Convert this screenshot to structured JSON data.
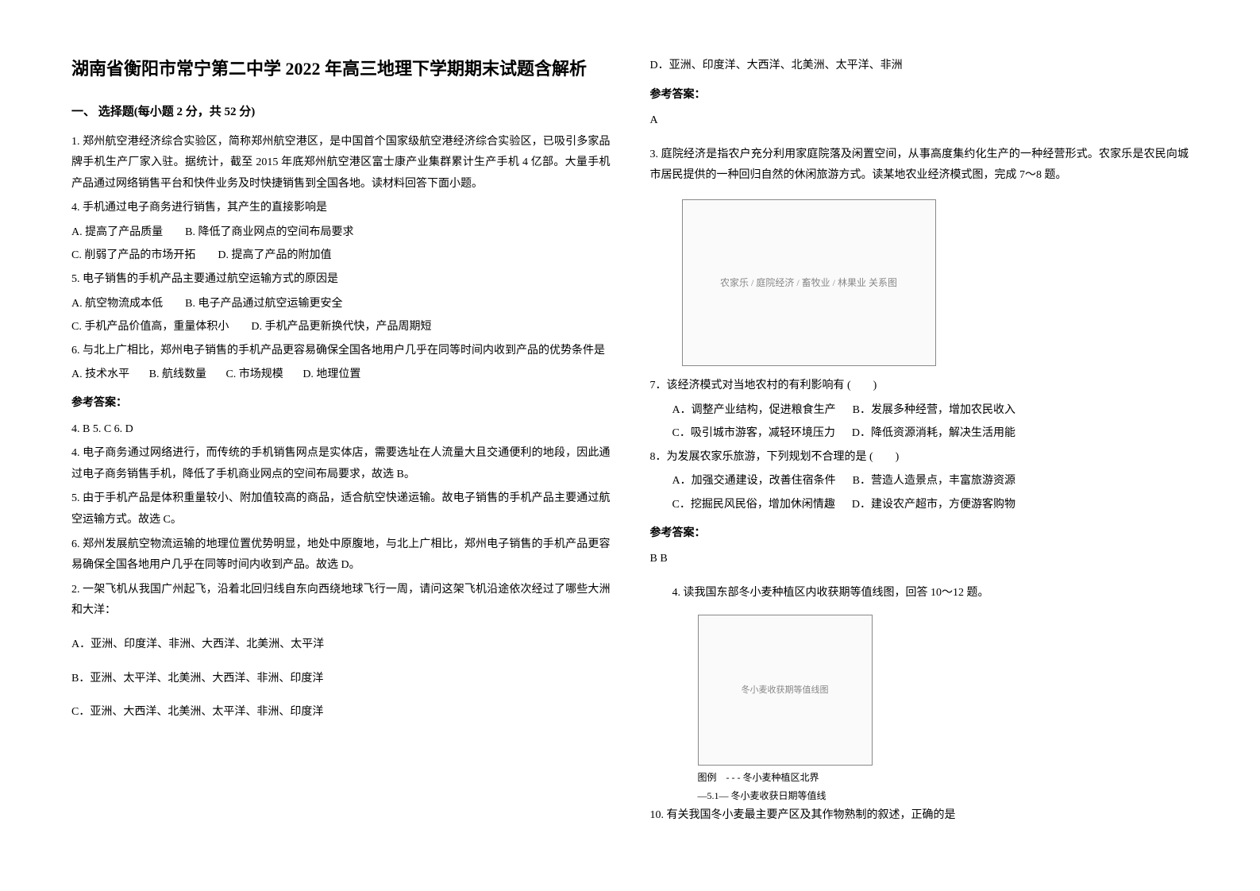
{
  "title": "湖南省衡阳市常宁第二中学 2022 年高三地理下学期期末试题含解析",
  "section1": {
    "heading": "一、 选择题(每小题 2 分，共 52 分)"
  },
  "q1": {
    "stem": "1. 郑州航空港经济综合实验区，简称郑州航空港区，是中国首个国家级航空港经济综合实验区，已吸引多家品牌手机生产厂家入驻。据统计，截至 2015 年底郑州航空港区富士康产业集群累计生产手机 4 亿部。大量手机产品通过网络销售平台和快件业务及时快捷销售到全国各地。读材料回答下面小题。",
    "sub4": "4. 手机通过电子商务进行销售，其产生的直接影响是",
    "sub4optA": "A. 提高了产品质量",
    "sub4optB": "B. 降低了商业网点的空间布局要求",
    "sub4optC": "C. 削弱了产品的市场开拓",
    "sub4optD": "D. 提高了产品的附加值",
    "sub5": "5. 电子销售的手机产品主要通过航空运输方式的原因是",
    "sub5optA": "A. 航空物流成本低",
    "sub5optB": "B. 电子产品通过航空运输更安全",
    "sub5optC": "C. 手机产品价值高，重量体积小",
    "sub5optD": "D. 手机产品更新换代快，产品周期短",
    "sub6": "6. 与北上广相比，郑州电子销售的手机产品更容易确保全国各地用户几乎在同等时间内收到产品的优势条件是",
    "sub6optA": "A. 技术水平",
    "sub6optB": "B. 航线数量",
    "sub6optC": "C. 市场规模",
    "sub6optD": "D. 地理位置",
    "answerLabel": "参考答案：",
    "answers": "4. B      5. C      6. D",
    "exp4": "4. 电子商务通过网络进行，而传统的手机销售网点是实体店，需要选址在人流量大且交通便利的地段，因此通过电子商务销售手机，降低了手机商业网点的空间布局要求，故选 B。",
    "exp5": "5. 由于手机产品是体积重量较小、附加值较高的商品，适合航空快递运输。故电子销售的手机产品主要通过航空运输方式。故选 C。",
    "exp6": "6. 郑州发展航空物流运输的地理位置优势明显，地处中原腹地，与北上广相比，郑州电子销售的手机产品更容易确保全国各地用户几乎在同等时间内收到产品。故选 D。"
  },
  "q2": {
    "stem": "2. 一架飞机从我国广州起飞，沿着北回归线自东向西绕地球飞行一周，请问这架飞机沿途依次经过了哪些大洲和大洋：",
    "optA": "A．亚洲、印度洋、非洲、大西洋、北美洲、太平洋",
    "optB": "B．亚洲、太平洋、北美洲、大西洋、非洲、印度洋",
    "optC": "C．亚洲、大西洋、北美洲、太平洋、非洲、印度洋",
    "optD": "D．亚洲、印度洋、大西洋、北美洲、太平洋、非洲",
    "answerLabel": "参考答案：",
    "answer": "A"
  },
  "q3": {
    "stem": "3. 庭院经济是指农户充分利用家庭院落及闲置空间，从事高度集约化生产的一种经营形式。农家乐是农民向城市居民提供的一种回归自然的休闲旅游方式。读某地农业经济模式图，完成 7～8 题。",
    "imageAlt": "农家乐 / 庭院经济 / 畜牧业 / 林果业 关系图",
    "sub7": "7．该经济模式对当地农村的有利影响有  (　　)",
    "sub7optA": "A．调整产业结构，促进粮食生产",
    "sub7optB": "B．发展多种经营，增加农民收入",
    "sub7optC": "C．吸引城市游客，减轻环境压力",
    "sub7optD": "D．降低资源消耗，解决生活用能",
    "sub8": "8．为发展农家乐旅游，下列规划不合理的是 (　　)",
    "sub8optA": "A．加强交通建设，改善住宿条件",
    "sub8optB": "B．营造人造景点，丰富旅游资源",
    "sub8optC": "C．挖掘民风民俗，增加休闲情趣",
    "sub8optD": "D．建设农产超市，方便游客购物",
    "answerLabel": "参考答案：",
    "answer": "B  B"
  },
  "q4": {
    "stem": "4. 读我国东部冬小麦种植区内收获期等值线图，回答 10～12 题。",
    "imageAlt": "冬小麦收获期等值线图",
    "legend1": "图例　- - -  冬小麦种植区北界",
    "legend2": "—5.1— 冬小麦收获日期等值线",
    "sub10": "10. 有关我国冬小麦最主要产区及其作物熟制的叙述，正确的是"
  },
  "colors": {
    "text": "#000000",
    "background": "#ffffff",
    "placeholder_border": "#888888"
  }
}
